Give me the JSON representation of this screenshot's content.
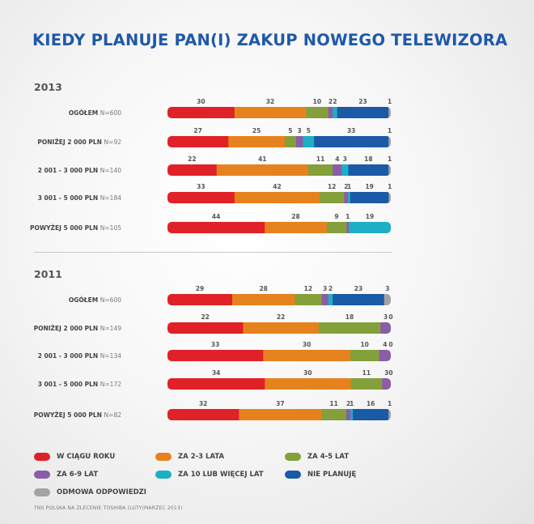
{
  "title": "KIEDY PLANUJE PAN(I) ZAKUP NOWEGO TELEWIZORA",
  "source": "TNS POLSKA NA ZLECENIE TOSHIBA (LUTY/MARZEC 2013)",
  "colors": {
    "w_ciagu_roku": "#e02127",
    "za_2_3_lata": "#e6821e",
    "za_4_5_lat": "#84a03a",
    "za_6_9_lat": "#8a5da8",
    "za_10_lub_wiecej_lat": "#1eafc4",
    "nie_planuje": "#1a5aa6",
    "odmowa_odpowiedzi": "#a3a3a3"
  },
  "legend": [
    {
      "key": "w_ciagu_roku",
      "label": "W CIĄGU ROKU"
    },
    {
      "key": "za_2_3_lata",
      "label": "ZA 2-3 LATA"
    },
    {
      "key": "za_4_5_lat",
      "label": "ZA 4-5 LAT"
    },
    {
      "key": "za_6_9_lat",
      "label": "ZA 6-9 LAT"
    },
    {
      "key": "za_10_lub_wiecej_lat",
      "label": "ZA 10 LUB WIĘCEJ LAT"
    },
    {
      "key": "nie_planuje",
      "label": "NIE PLANUJĘ"
    },
    {
      "key": "odmowa_odpowiedzi",
      "label": "ODMOWA ODPOWIEDZI"
    }
  ],
  "chart_data": [
    {
      "type": "bar",
      "orientation": "horizontal-stacked",
      "title": "2013",
      "categories": [
        {
          "label": "OGÓŁEM",
          "n": "N=600"
        },
        {
          "label": "PONIŻEJ 2 000 PLN",
          "n": "N=92"
        },
        {
          "label": "2 001 - 3 000 PLN",
          "n": "N=140"
        },
        {
          "label": "3 001 - 5 000 PLN",
          "n": "N=184"
        },
        {
          "label": "POWYŻEJ 5 000 PLN",
          "n": "N=105"
        }
      ],
      "series": [
        {
          "name": "W CIĄGU ROKU",
          "key": "w_ciagu_roku",
          "values": [
            30,
            27,
            22,
            33,
            44
          ]
        },
        {
          "name": "ZA 2-3 LATA",
          "key": "za_2_3_lata",
          "values": [
            32,
            25,
            41,
            42,
            28
          ]
        },
        {
          "name": "ZA 4-5 LAT",
          "key": "za_4_5_lat",
          "values": [
            10,
            5,
            11,
            12,
            9
          ]
        },
        {
          "name": "ZA 6-9 LAT",
          "key": "za_6_9_lat",
          "values": [
            2,
            3,
            4,
            2,
            1
          ]
        },
        {
          "name": "ZA 10 LUB WIĘCEJ LAT",
          "key": "za_10_lub_wiecej_lat",
          "values": [
            2,
            5,
            3,
            1,
            19
          ]
        },
        {
          "name": "NIE PLANUJĘ",
          "key": "nie_planuje",
          "values": [
            23,
            33,
            18,
            19,
            null
          ]
        },
        {
          "name": "ODMOWA ODPOWIEDZI",
          "key": "odmowa_odpowiedzi",
          "values": [
            1,
            1,
            1,
            1,
            null
          ]
        }
      ]
    },
    {
      "type": "bar",
      "orientation": "horizontal-stacked",
      "title": "2011",
      "categories": [
        {
          "label": "OGÓŁEM",
          "n": "N=600"
        },
        {
          "label": "PONIŻEJ 2 000 PLN",
          "n": "N=149"
        },
        {
          "label": "2 001 - 3 000 PLN",
          "n": "N=134"
        },
        {
          "label": "3 001 - 5 000 PLN",
          "n": "N=172"
        },
        {
          "label": "POWYŻEJ 5 000 PLN",
          "n": "N=82"
        }
      ],
      "series": [
        {
          "name": "W CIĄGU ROKU",
          "key": "w_ciagu_roku",
          "values": [
            29,
            22,
            33,
            34,
            32
          ]
        },
        {
          "name": "ZA 2-3 LATA",
          "key": "za_2_3_lata",
          "values": [
            28,
            22,
            30,
            30,
            37
          ]
        },
        {
          "name": "ZA 4-5 LAT",
          "key": "za_4_5_lat",
          "values": [
            12,
            18,
            10,
            11,
            11
          ]
        },
        {
          "name": "ZA 6-9 LAT",
          "key": "za_6_9_lat",
          "values": [
            3,
            3,
            4,
            3,
            2
          ]
        },
        {
          "name": "ZA 10 LUB WIĘCEJ LAT",
          "key": "za_10_lub_wiecej_lat",
          "values": [
            2,
            0,
            0,
            0,
            1
          ]
        },
        {
          "name": "NIE PLANUJĘ",
          "key": "nie_planuje",
          "values": [
            23,
            null,
            null,
            null,
            16
          ]
        },
        {
          "name": "ODMOWA ODPOWIEDZI",
          "key": "odmowa_odpowiedzi",
          "values": [
            3,
            null,
            null,
            null,
            1
          ]
        }
      ]
    }
  ]
}
